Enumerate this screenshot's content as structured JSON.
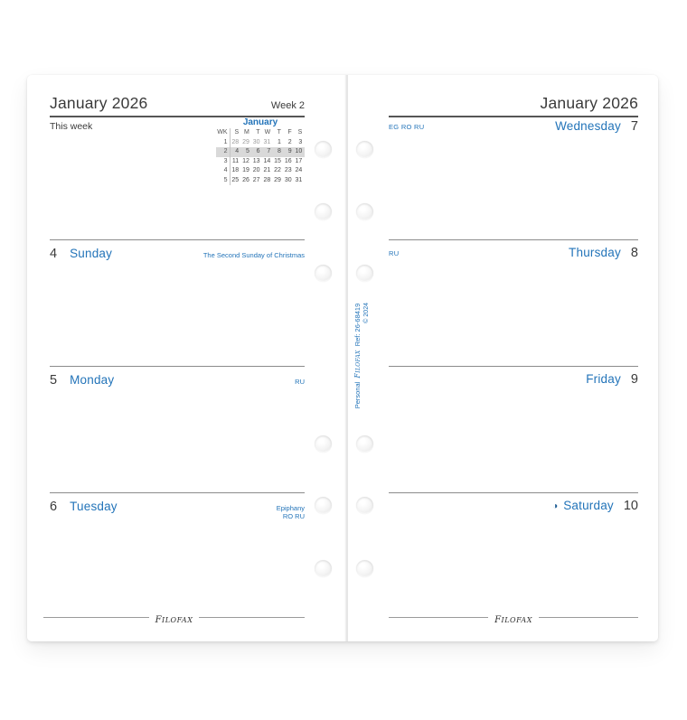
{
  "colors": {
    "accent_blue": "#2374b9",
    "text_dark": "#3d3d3d",
    "muted_date": "#9a9a9a",
    "week_highlight": "#d9d9d9"
  },
  "left_page": {
    "month_title": "January 2026",
    "week_label": "Week 2",
    "this_week_label": "This week",
    "mini_calendar": {
      "title": "January",
      "header": [
        "WK",
        "S",
        "M",
        "T",
        "W",
        "T",
        "F",
        "S"
      ],
      "rows": [
        {
          "wk": "1",
          "days": [
            "28",
            "29",
            "30",
            "31",
            "1",
            "2",
            "3"
          ],
          "muted": [
            true,
            true,
            true,
            true,
            false,
            false,
            false
          ],
          "highlight": false
        },
        {
          "wk": "2",
          "days": [
            "4",
            "5",
            "6",
            "7",
            "8",
            "9",
            "10"
          ],
          "muted": [
            false,
            false,
            false,
            false,
            false,
            false,
            false
          ],
          "highlight": true
        },
        {
          "wk": "3",
          "days": [
            "11",
            "12",
            "13",
            "14",
            "15",
            "16",
            "17"
          ],
          "muted": [
            false,
            false,
            false,
            false,
            false,
            false,
            false
          ],
          "highlight": false
        },
        {
          "wk": "4",
          "days": [
            "18",
            "19",
            "20",
            "21",
            "22",
            "23",
            "24"
          ],
          "muted": [
            false,
            false,
            false,
            false,
            false,
            false,
            false
          ],
          "highlight": false
        },
        {
          "wk": "5",
          "days": [
            "25",
            "26",
            "27",
            "28",
            "29",
            "30",
            "31"
          ],
          "muted": [
            false,
            false,
            false,
            false,
            false,
            false,
            false
          ],
          "highlight": false
        }
      ]
    },
    "days": [
      {
        "number": "4",
        "name": "Sunday",
        "note_lines": [
          "The Second Sunday of Christmas"
        ]
      },
      {
        "number": "5",
        "name": "Monday",
        "note_lines": [
          "RU"
        ]
      },
      {
        "number": "6",
        "name": "Tuesday",
        "note_lines": [
          "Epiphany",
          "RO  RU"
        ]
      }
    ],
    "footer_logo": "filofax"
  },
  "right_page": {
    "month_title": "January 2026",
    "days": [
      {
        "name": "Wednesday",
        "number": "7",
        "left_note": "EG RO RU",
        "moon": ""
      },
      {
        "name": "Thursday",
        "number": "8",
        "left_note": "RU",
        "moon": ""
      },
      {
        "name": "Friday",
        "number": "9",
        "left_note": "",
        "moon": ""
      },
      {
        "name": "Saturday",
        "number": "10",
        "left_note": "",
        "moon": "◑"
      }
    ],
    "footer_logo": "filofax"
  },
  "spine": {
    "product_line": "Personal",
    "brand": "filofax",
    "ref": "Ref: 26-68419",
    "copyright": "© 2024"
  }
}
